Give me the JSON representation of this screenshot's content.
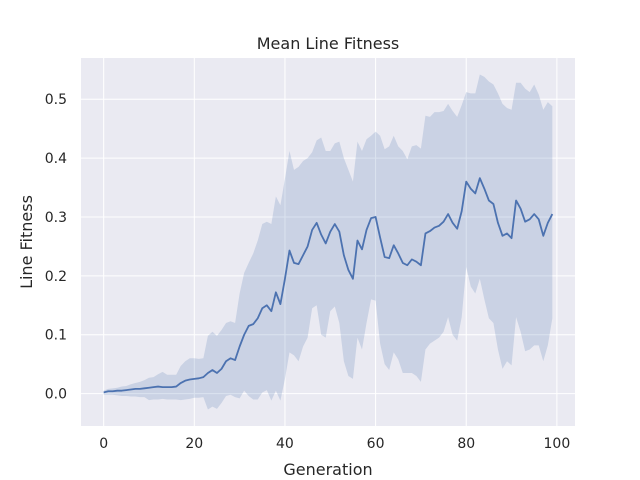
{
  "chart_data": {
    "type": "line",
    "title": "Mean Line Fitness",
    "xlabel": "Generation",
    "ylabel": "Line Fitness",
    "xlim": [
      -5,
      104
    ],
    "ylim": [
      -0.055,
      0.57
    ],
    "grid": true,
    "x_ticks": [
      0,
      20,
      40,
      60,
      80,
      100
    ],
    "y_ticks": [
      0.0,
      0.1,
      0.2,
      0.3,
      0.4,
      0.5
    ],
    "x_tick_labels": [
      "0",
      "20",
      "40",
      "60",
      "80",
      "100"
    ],
    "y_tick_labels": [
      "0.0",
      "0.1",
      "0.2",
      "0.3",
      "0.4",
      "0.5"
    ],
    "colors": {
      "line": "#4c72b0",
      "band": "#4c72b0",
      "background": "#eaeaf2",
      "grid": "#ffffff"
    },
    "series": [
      {
        "x": [
          0,
          1,
          2,
          3,
          4,
          5,
          6,
          7,
          8,
          9,
          10,
          11,
          12,
          13,
          14,
          15,
          16,
          17,
          18,
          19,
          20,
          21,
          22,
          23,
          24,
          25,
          26,
          27,
          28,
          29,
          30,
          31,
          32,
          33,
          34,
          35,
          36,
          37,
          38,
          39,
          40,
          41,
          42,
          43,
          44,
          45,
          46,
          47,
          48,
          49,
          50,
          51,
          52,
          53,
          54,
          55,
          56,
          57,
          58,
          59,
          60,
          61,
          62,
          63,
          64,
          65,
          66,
          67,
          68,
          69,
          70,
          71,
          72,
          73,
          74,
          75,
          76,
          77,
          78,
          79,
          80,
          81,
          82,
          83,
          84,
          85,
          86,
          87,
          88,
          89,
          90,
          91,
          92,
          93,
          94,
          95,
          96,
          97,
          98,
          99
        ],
        "mean": [
          0.002,
          0.004,
          0.004,
          0.005,
          0.005,
          0.006,
          0.007,
          0.008,
          0.008,
          0.009,
          0.01,
          0.011,
          0.012,
          0.011,
          0.011,
          0.011,
          0.012,
          0.018,
          0.022,
          0.024,
          0.025,
          0.026,
          0.028,
          0.035,
          0.04,
          0.035,
          0.042,
          0.055,
          0.06,
          0.057,
          0.08,
          0.1,
          0.115,
          0.118,
          0.128,
          0.145,
          0.15,
          0.14,
          0.172,
          0.152,
          0.195,
          0.243,
          0.222,
          0.22,
          0.235,
          0.25,
          0.278,
          0.29,
          0.27,
          0.255,
          0.275,
          0.288,
          0.275,
          0.235,
          0.21,
          0.195,
          0.26,
          0.245,
          0.278,
          0.298,
          0.3,
          0.265,
          0.232,
          0.23,
          0.252,
          0.238,
          0.222,
          0.218,
          0.228,
          0.224,
          0.218,
          0.272,
          0.276,
          0.282,
          0.285,
          0.292,
          0.305,
          0.29,
          0.28,
          0.31,
          0.36,
          0.348,
          0.34,
          0.366,
          0.348,
          0.328,
          0.322,
          0.29,
          0.268,
          0.272,
          0.264,
          0.328,
          0.314,
          0.292,
          0.296,
          0.305,
          0.296,
          0.268,
          0.29,
          0.305
        ],
        "lower": [
          -0.002,
          -0.002,
          -0.002,
          -0.003,
          -0.004,
          -0.004,
          -0.005,
          -0.005,
          -0.006,
          -0.006,
          -0.011,
          -0.01,
          -0.01,
          -0.009,
          -0.01,
          -0.01,
          -0.01,
          -0.011,
          -0.01,
          -0.009,
          -0.007,
          -0.007,
          -0.006,
          -0.027,
          -0.022,
          -0.026,
          -0.016,
          -0.004,
          -0.002,
          -0.006,
          -0.008,
          0.005,
          -0.004,
          -0.01,
          -0.01,
          0.002,
          0.006,
          -0.012,
          0.005,
          -0.012,
          0.025,
          0.07,
          0.065,
          0.055,
          0.08,
          0.095,
          0.145,
          0.15,
          0.1,
          0.095,
          0.14,
          0.148,
          0.12,
          0.055,
          0.03,
          0.025,
          0.095,
          0.075,
          0.12,
          0.16,
          0.158,
          0.085,
          0.05,
          0.04,
          0.07,
          0.058,
          0.035,
          0.035,
          0.035,
          0.03,
          0.02,
          0.075,
          0.085,
          0.09,
          0.095,
          0.105,
          0.13,
          0.1,
          0.09,
          0.13,
          0.215,
          0.182,
          0.17,
          0.195,
          0.16,
          0.128,
          0.12,
          0.075,
          0.042,
          0.055,
          0.048,
          0.13,
          0.105,
          0.072,
          0.075,
          0.082,
          0.082,
          0.055,
          0.082,
          0.128
        ],
        "upper": [
          0.005,
          0.008,
          0.009,
          0.01,
          0.012,
          0.013,
          0.016,
          0.018,
          0.02,
          0.023,
          0.027,
          0.028,
          0.033,
          0.037,
          0.032,
          0.032,
          0.032,
          0.047,
          0.055,
          0.06,
          0.06,
          0.059,
          0.06,
          0.098,
          0.105,
          0.098,
          0.108,
          0.12,
          0.123,
          0.12,
          0.17,
          0.205,
          0.222,
          0.238,
          0.26,
          0.288,
          0.292,
          0.288,
          0.335,
          0.32,
          0.365,
          0.412,
          0.38,
          0.385,
          0.395,
          0.4,
          0.41,
          0.43,
          0.435,
          0.412,
          0.412,
          0.425,
          0.428,
          0.4,
          0.38,
          0.36,
          0.428,
          0.412,
          0.432,
          0.438,
          0.445,
          0.438,
          0.415,
          0.42,
          0.438,
          0.42,
          0.412,
          0.398,
          0.42,
          0.422,
          0.416,
          0.472,
          0.47,
          0.478,
          0.478,
          0.48,
          0.492,
          0.48,
          0.47,
          0.49,
          0.512,
          0.51,
          0.51,
          0.542,
          0.538,
          0.53,
          0.525,
          0.51,
          0.492,
          0.485,
          0.482,
          0.528,
          0.528,
          0.518,
          0.512,
          0.525,
          0.508,
          0.482,
          0.495,
          0.488
        ]
      }
    ]
  }
}
